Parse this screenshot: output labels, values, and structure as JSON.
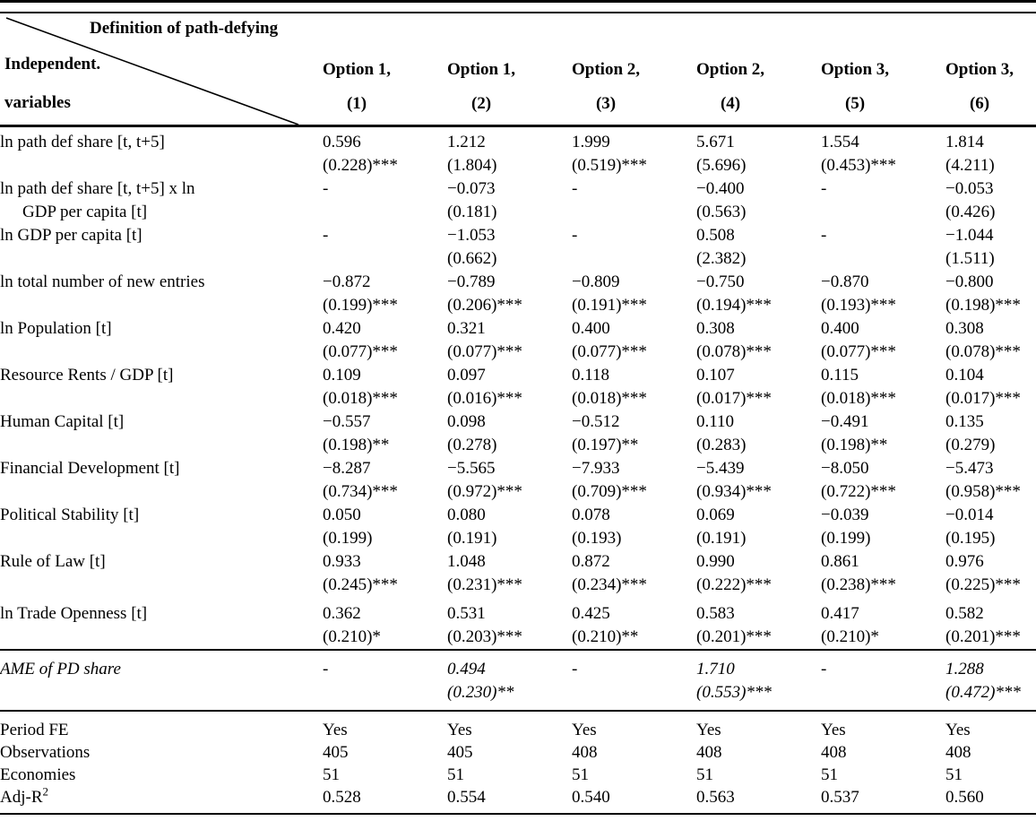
{
  "table": {
    "header": {
      "corner_top": "Definition of path-defying",
      "corner_bottom_line1": "Independent.",
      "corner_bottom_line2": "variables",
      "columns": [
        {
          "group": "Option 1,",
          "number": "(1)"
        },
        {
          "group": "Option 1,",
          "number": "(2)"
        },
        {
          "group": "Option 2,",
          "number": "(3)"
        },
        {
          "group": "Option 2,",
          "number": "(4)"
        },
        {
          "group": "Option 3,",
          "number": "(5)"
        },
        {
          "group": "Option 3,",
          "number": "(6)"
        }
      ]
    },
    "rows": [
      {
        "label": [
          "ln path def share [t, t+5]"
        ],
        "cells": [
          {
            "coef": "0.596",
            "se": "(0.228)***"
          },
          {
            "coef": "1.212",
            "se": "(1.804)"
          },
          {
            "coef": "1.999",
            "se": "(0.519)***"
          },
          {
            "coef": "5.671",
            "se": "(5.696)"
          },
          {
            "coef": "1.554",
            "se": "(0.453)***"
          },
          {
            "coef": "1.814",
            "se": "(4.211)"
          }
        ]
      },
      {
        "label": [
          "ln path def share [t, t+5] x ln",
          "GDP per capita [t]"
        ],
        "cells": [
          {
            "coef": "-",
            "se": ""
          },
          {
            "coef": "−0.073",
            "se": "(0.181)"
          },
          {
            "coef": "-",
            "se": ""
          },
          {
            "coef": "−0.400",
            "se": "(0.563)"
          },
          {
            "coef": "-",
            "se": ""
          },
          {
            "coef": "−0.053",
            "se": "(0.426)"
          }
        ]
      },
      {
        "label": [
          "ln GDP per capita [t]"
        ],
        "cells": [
          {
            "coef": "-",
            "se": ""
          },
          {
            "coef": "−1.053",
            "se": "(0.662)"
          },
          {
            "coef": "-",
            "se": ""
          },
          {
            "coef": "0.508",
            "se": "(2.382)"
          },
          {
            "coef": "-",
            "se": ""
          },
          {
            "coef": "−1.044",
            "se": "(1.511)"
          }
        ]
      },
      {
        "label": [
          "ln total number of new entries"
        ],
        "cells": [
          {
            "coef": "−0.872",
            "se": "(0.199)***"
          },
          {
            "coef": "−0.789",
            "se": "(0.206)***"
          },
          {
            "coef": "−0.809",
            "se": "(0.191)***"
          },
          {
            "coef": "−0.750",
            "se": "(0.194)***"
          },
          {
            "coef": "−0.870",
            "se": "(0.193)***"
          },
          {
            "coef": "−0.800",
            "se": "(0.198)***"
          }
        ]
      },
      {
        "label": [
          "ln Population [t]"
        ],
        "cells": [
          {
            "coef": "0.420",
            "se": "(0.077)***"
          },
          {
            "coef": "0.321",
            "se": "(0.077)***"
          },
          {
            "coef": "0.400",
            "se": "(0.077)***"
          },
          {
            "coef": "0.308",
            "se": "(0.078)***"
          },
          {
            "coef": "0.400",
            "se": "(0.077)***"
          },
          {
            "coef": "0.308",
            "se": "(0.078)***"
          }
        ]
      },
      {
        "label": [
          "Resource Rents / GDP [t]"
        ],
        "cells": [
          {
            "coef": "0.109",
            "se": "(0.018)***"
          },
          {
            "coef": "0.097",
            "se": "(0.016)***"
          },
          {
            "coef": "0.118",
            "se": "(0.018)***"
          },
          {
            "coef": "0.107",
            "se": "(0.017)***"
          },
          {
            "coef": "0.115",
            "se": "(0.018)***"
          },
          {
            "coef": "0.104",
            "se": "(0.017)***"
          }
        ]
      },
      {
        "label": [
          "Human Capital [t]"
        ],
        "cells": [
          {
            "coef": "−0.557",
            "se": "(0.198)**"
          },
          {
            "coef": "0.098",
            "se": "(0.278)"
          },
          {
            "coef": "−0.512",
            "se": "(0.197)**"
          },
          {
            "coef": "0.110",
            "se": "(0.283)"
          },
          {
            "coef": "−0.491",
            "se": "(0.198)**"
          },
          {
            "coef": "0.135",
            "se": "(0.279)"
          }
        ]
      },
      {
        "label": [
          "Financial Development [t]"
        ],
        "cells": [
          {
            "coef": "−8.287",
            "se": "(0.734)***"
          },
          {
            "coef": "−5.565",
            "se": "(0.972)***"
          },
          {
            "coef": "−7.933",
            "se": "(0.709)***"
          },
          {
            "coef": "−5.439",
            "se": "(0.934)***"
          },
          {
            "coef": "−8.050",
            "se": "(0.722)***"
          },
          {
            "coef": "−5.473",
            "se": "(0.958)***"
          }
        ]
      },
      {
        "label": [
          "Political Stability [t]"
        ],
        "cells": [
          {
            "coef": "0.050",
            "se": "(0.199)"
          },
          {
            "coef": "0.080",
            "se": "(0.191)"
          },
          {
            "coef": "0.078",
            "se": "(0.193)"
          },
          {
            "coef": "0.069",
            "se": "(0.191)"
          },
          {
            "coef": "−0.039",
            "se": "(0.199)"
          },
          {
            "coef": "−0.014",
            "se": "(0.195)"
          }
        ]
      },
      {
        "label": [
          "Rule of Law [t]"
        ],
        "cells": [
          {
            "coef": "0.933",
            "se": "(0.245)***"
          },
          {
            "coef": "1.048",
            "se": "(0.231)***"
          },
          {
            "coef": "0.872",
            "se": "(0.234)***"
          },
          {
            "coef": "0.990",
            "se": "(0.222)***"
          },
          {
            "coef": "0.861",
            "se": "(0.238)***"
          },
          {
            "coef": "0.976",
            "se": "(0.225)***"
          }
        ]
      },
      {
        "label": [
          "ln Trade Openness [t]"
        ],
        "cells": [
          {
            "coef": "0.362",
            "se": "(0.210)*"
          },
          {
            "coef": "0.531",
            "se": "(0.203)***"
          },
          {
            "coef": "0.425",
            "se": "(0.210)**"
          },
          {
            "coef": "0.583",
            "se": "(0.201)***"
          },
          {
            "coef": "0.417",
            "se": "(0.210)*"
          },
          {
            "coef": "0.582",
            "se": "(0.201)***"
          }
        ]
      }
    ],
    "ame_row": {
      "label": "AME of PD share",
      "cells": [
        {
          "coef": "-",
          "se": ""
        },
        {
          "coef": "0.494",
          "se": "(0.230)**"
        },
        {
          "coef": "-",
          "se": ""
        },
        {
          "coef": "1.710",
          "se": "(0.553)***"
        },
        {
          "coef": "-",
          "se": ""
        },
        {
          "coef": "1.288",
          "se": "(0.472)***"
        }
      ]
    },
    "stats_rows": [
      {
        "label": "Period FE",
        "label_sup": "",
        "values": [
          "Yes",
          "Yes",
          "Yes",
          "Yes",
          "Yes",
          "Yes"
        ]
      },
      {
        "label": "Observations",
        "label_sup": "",
        "values": [
          "405",
          "405",
          "408",
          "408",
          "408",
          "408"
        ]
      },
      {
        "label": "Economies",
        "label_sup": "",
        "values": [
          "51",
          "51",
          "51",
          "51",
          "51",
          "51"
        ]
      },
      {
        "label": "Adj-R",
        "label_sup": "2",
        "values": [
          "0.528",
          "0.554",
          "0.540",
          "0.563",
          "0.537",
          "0.560"
        ]
      }
    ]
  }
}
